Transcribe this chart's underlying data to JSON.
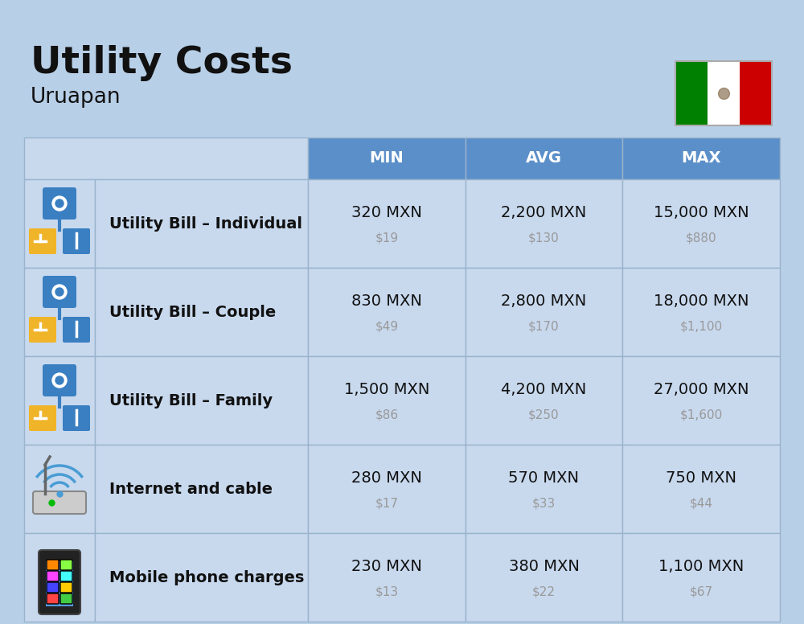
{
  "title": "Utility Costs",
  "subtitle": "Uruapan",
  "background_color": "#b8cfe8",
  "header_color": "#5b8fc9",
  "header_text_color": "#ffffff",
  "row_bg": "#c8d9ee",
  "col_headers": [
    "MIN",
    "AVG",
    "MAX"
  ],
  "rows": [
    {
      "label": "Utility Bill – Individual",
      "icon": "utility",
      "min_mxn": "320 MXN",
      "min_usd": "$19",
      "avg_mxn": "2,200 MXN",
      "avg_usd": "$130",
      "max_mxn": "15,000 MXN",
      "max_usd": "$880"
    },
    {
      "label": "Utility Bill – Couple",
      "icon": "utility",
      "min_mxn": "830 MXN",
      "min_usd": "$49",
      "avg_mxn": "2,800 MXN",
      "avg_usd": "$170",
      "max_mxn": "18,000 MXN",
      "max_usd": "$1,100"
    },
    {
      "label": "Utility Bill – Family",
      "icon": "utility",
      "min_mxn": "1,500 MXN",
      "min_usd": "$86",
      "avg_mxn": "4,200 MXN",
      "avg_usd": "$250",
      "max_mxn": "27,000 MXN",
      "max_usd": "$1,600"
    },
    {
      "label": "Internet and cable",
      "icon": "internet",
      "min_mxn": "280 MXN",
      "min_usd": "$17",
      "avg_mxn": "570 MXN",
      "avg_usd": "$33",
      "max_mxn": "750 MXN",
      "max_usd": "$44"
    },
    {
      "label": "Mobile phone charges",
      "icon": "mobile",
      "min_mxn": "230 MXN",
      "min_usd": "$13",
      "avg_mxn": "380 MXN",
      "avg_usd": "$22",
      "max_mxn": "1,100 MXN",
      "max_usd": "$67"
    }
  ],
  "flag_colors": [
    "#008000",
    "#ffffff",
    "#cc0000"
  ],
  "title_fontsize": 34,
  "subtitle_fontsize": 19,
  "header_fontsize": 14,
  "label_fontsize": 14,
  "value_fontsize": 14,
  "usd_fontsize": 11,
  "text_color": "#111111",
  "usd_color": "#999999",
  "border_color": "#9ab4cc"
}
